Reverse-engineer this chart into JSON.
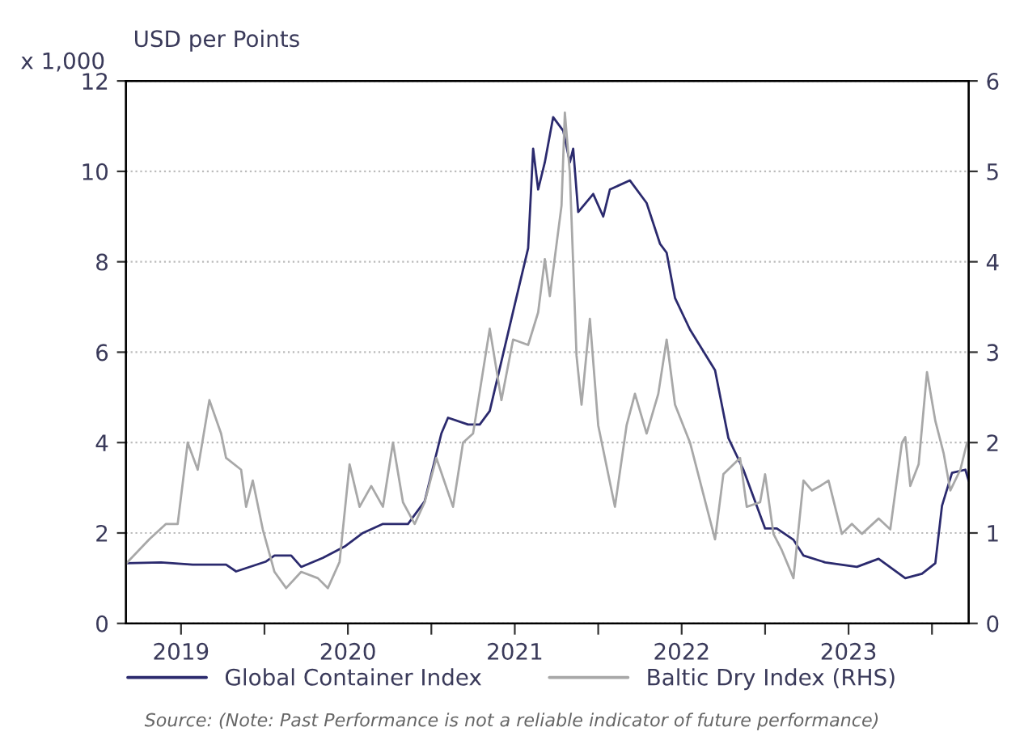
{
  "chart_data": {
    "type": "line",
    "subtitle": "USD per Points",
    "ylabel": "x 1,000",
    "xlim": [
      2019.17,
      2024.22
    ],
    "xticks": [
      {
        "value": 2019.5,
        "label": "2019"
      },
      {
        "value": 2020.5,
        "label": "2020"
      },
      {
        "value": 2021.5,
        "label": "2021"
      },
      {
        "value": 2022.5,
        "label": "2022"
      },
      {
        "value": 2023.5,
        "label": "2023"
      },
      {
        "value": 2020,
        "label": null
      },
      {
        "value": 2021,
        "label": null
      },
      {
        "value": 2022,
        "label": null
      },
      {
        "value": 2023,
        "label": null
      },
      {
        "value": 2024,
        "label": null
      }
    ],
    "ylim": [
      0,
      12
    ],
    "yticks": [
      0,
      2,
      4,
      6,
      8,
      10,
      12
    ],
    "y2lim": [
      0,
      6
    ],
    "y2ticks": [
      0,
      1,
      2,
      3,
      4,
      5,
      6
    ],
    "grid": "y",
    "legend": "bottom",
    "marker": "none",
    "line_style": "solid",
    "series": [
      {
        "name": "Global Container Index",
        "color": "#2b2a6e",
        "axis": "y",
        "x": [
          2019.17,
          2019.38,
          2019.57,
          2019.77,
          2019.83,
          2020.01,
          2020.06,
          2020.16,
          2020.22,
          2020.35,
          2020.48,
          2020.59,
          2020.71,
          2020.86,
          2020.96,
          2021.06,
          2021.1,
          2021.22,
          2021.29,
          2021.35,
          2021.49,
          2021.58,
          2021.61,
          2021.64,
          2021.68,
          2021.73,
          2021.79,
          2021.83,
          2021.85,
          2021.88,
          2021.97,
          2022.03,
          2022.07,
          2022.19,
          2022.29,
          2022.37,
          2022.41,
          2022.46,
          2022.55,
          2022.7,
          2022.78,
          2022.87,
          2023.0,
          2023.07,
          2023.17,
          2023.23,
          2023.36,
          2023.55,
          2023.68,
          2023.84,
          2023.94,
          2024.02,
          2024.06,
          2024.12,
          2024.2,
          2024.22
        ],
        "values": [
          1.33,
          1.35,
          1.3,
          1.3,
          1.15,
          1.37,
          1.5,
          1.5,
          1.25,
          1.45,
          1.7,
          2.0,
          2.2,
          2.2,
          2.7,
          4.2,
          4.55,
          4.4,
          4.4,
          4.7,
          6.9,
          8.3,
          10.5,
          9.6,
          10.2,
          11.2,
          10.9,
          10.2,
          10.5,
          9.1,
          9.5,
          9.0,
          9.6,
          9.8,
          9.3,
          8.4,
          8.2,
          7.2,
          6.5,
          5.6,
          4.1,
          3.4,
          2.1,
          2.1,
          1.85,
          1.5,
          1.35,
          1.25,
          1.43,
          1.0,
          1.1,
          1.33,
          2.6,
          3.33,
          3.4,
          3.15
        ]
      },
      {
        "name": "Baltic Dry Index (RHS)",
        "color": "#a8a8a8",
        "axis": "y2",
        "x": [
          2019.17,
          2019.31,
          2019.41,
          2019.48,
          2019.54,
          2019.6,
          2019.67,
          2019.74,
          2019.77,
          2019.86,
          2019.89,
          2019.93,
          2019.99,
          2020.06,
          2020.13,
          2020.22,
          2020.32,
          2020.38,
          2020.45,
          2020.51,
          2020.57,
          2020.64,
          2020.71,
          2020.77,
          2020.83,
          2020.9,
          2020.96,
          2021.03,
          2021.13,
          2021.19,
          2021.25,
          2021.35,
          2021.42,
          2021.49,
          2021.58,
          2021.64,
          2021.68,
          2021.71,
          2021.78,
          2021.8,
          2021.83,
          2021.87,
          2021.9,
          2021.95,
          2022.0,
          2022.1,
          2022.17,
          2022.22,
          2022.29,
          2022.36,
          2022.41,
          2022.46,
          2022.55,
          2022.7,
          2022.75,
          2022.85,
          2022.89,
          2022.97,
          2023.0,
          2023.05,
          2023.1,
          2023.17,
          2023.23,
          2023.28,
          2023.33,
          2023.38,
          2023.46,
          2023.52,
          2023.58,
          2023.68,
          2023.75,
          2023.82,
          2023.84,
          2023.87,
          2023.92,
          2023.97,
          2024.02,
          2024.07,
          2024.11,
          2024.17,
          2024.21
        ],
        "values": [
          0.66,
          0.93,
          1.1,
          1.1,
          2.0,
          1.7,
          2.47,
          2.1,
          1.83,
          1.7,
          1.29,
          1.58,
          1.04,
          0.57,
          0.39,
          0.57,
          0.5,
          0.39,
          0.68,
          1.76,
          1.29,
          1.52,
          1.29,
          2.0,
          1.34,
          1.1,
          1.34,
          1.83,
          1.29,
          2.0,
          2.1,
          3.26,
          2.47,
          3.14,
          3.08,
          3.44,
          4.03,
          3.62,
          4.62,
          5.65,
          4.98,
          2.96,
          2.42,
          3.37,
          2.19,
          1.29,
          2.19,
          2.54,
          2.1,
          2.54,
          3.14,
          2.42,
          2.0,
          0.93,
          1.65,
          1.83,
          1.29,
          1.34,
          1.65,
          0.99,
          0.81,
          0.5,
          1.58,
          1.47,
          1.52,
          1.58,
          0.99,
          1.1,
          0.99,
          1.16,
          1.04,
          2.0,
          2.06,
          1.52,
          1.76,
          2.78,
          2.24,
          1.88,
          1.47,
          1.7,
          2.0
        ]
      }
    ],
    "annotations": [
      "Source: (Note: Past Performance is not a reliable indicator of future performance)"
    ]
  }
}
